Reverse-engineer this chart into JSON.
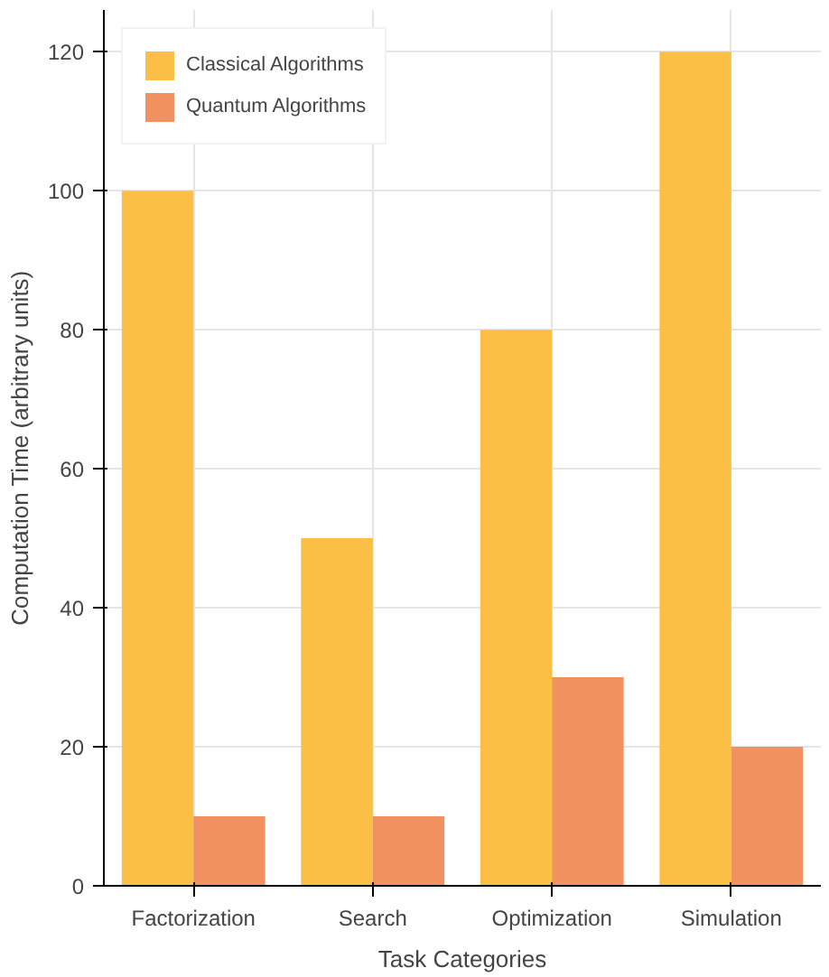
{
  "chart_data": {
    "type": "bar",
    "xlabel": "Task Categories",
    "ylabel": "Computation Time (arbitrary units)",
    "categories": [
      "Factorization",
      "Search",
      "Optimization",
      "Simulation"
    ],
    "series": [
      {
        "name": "Classical Algorithms",
        "color": "#fbbf45",
        "values": [
          100,
          50,
          80,
          120
        ]
      },
      {
        "name": "Quantum Algorithms",
        "color": "#f0915f",
        "values": [
          10,
          10,
          30,
          20
        ]
      }
    ],
    "ylim": [
      0,
      126
    ],
    "yticks": [
      0,
      20,
      40,
      60,
      80,
      100,
      120
    ],
    "grid": true,
    "legend": "top left"
  }
}
